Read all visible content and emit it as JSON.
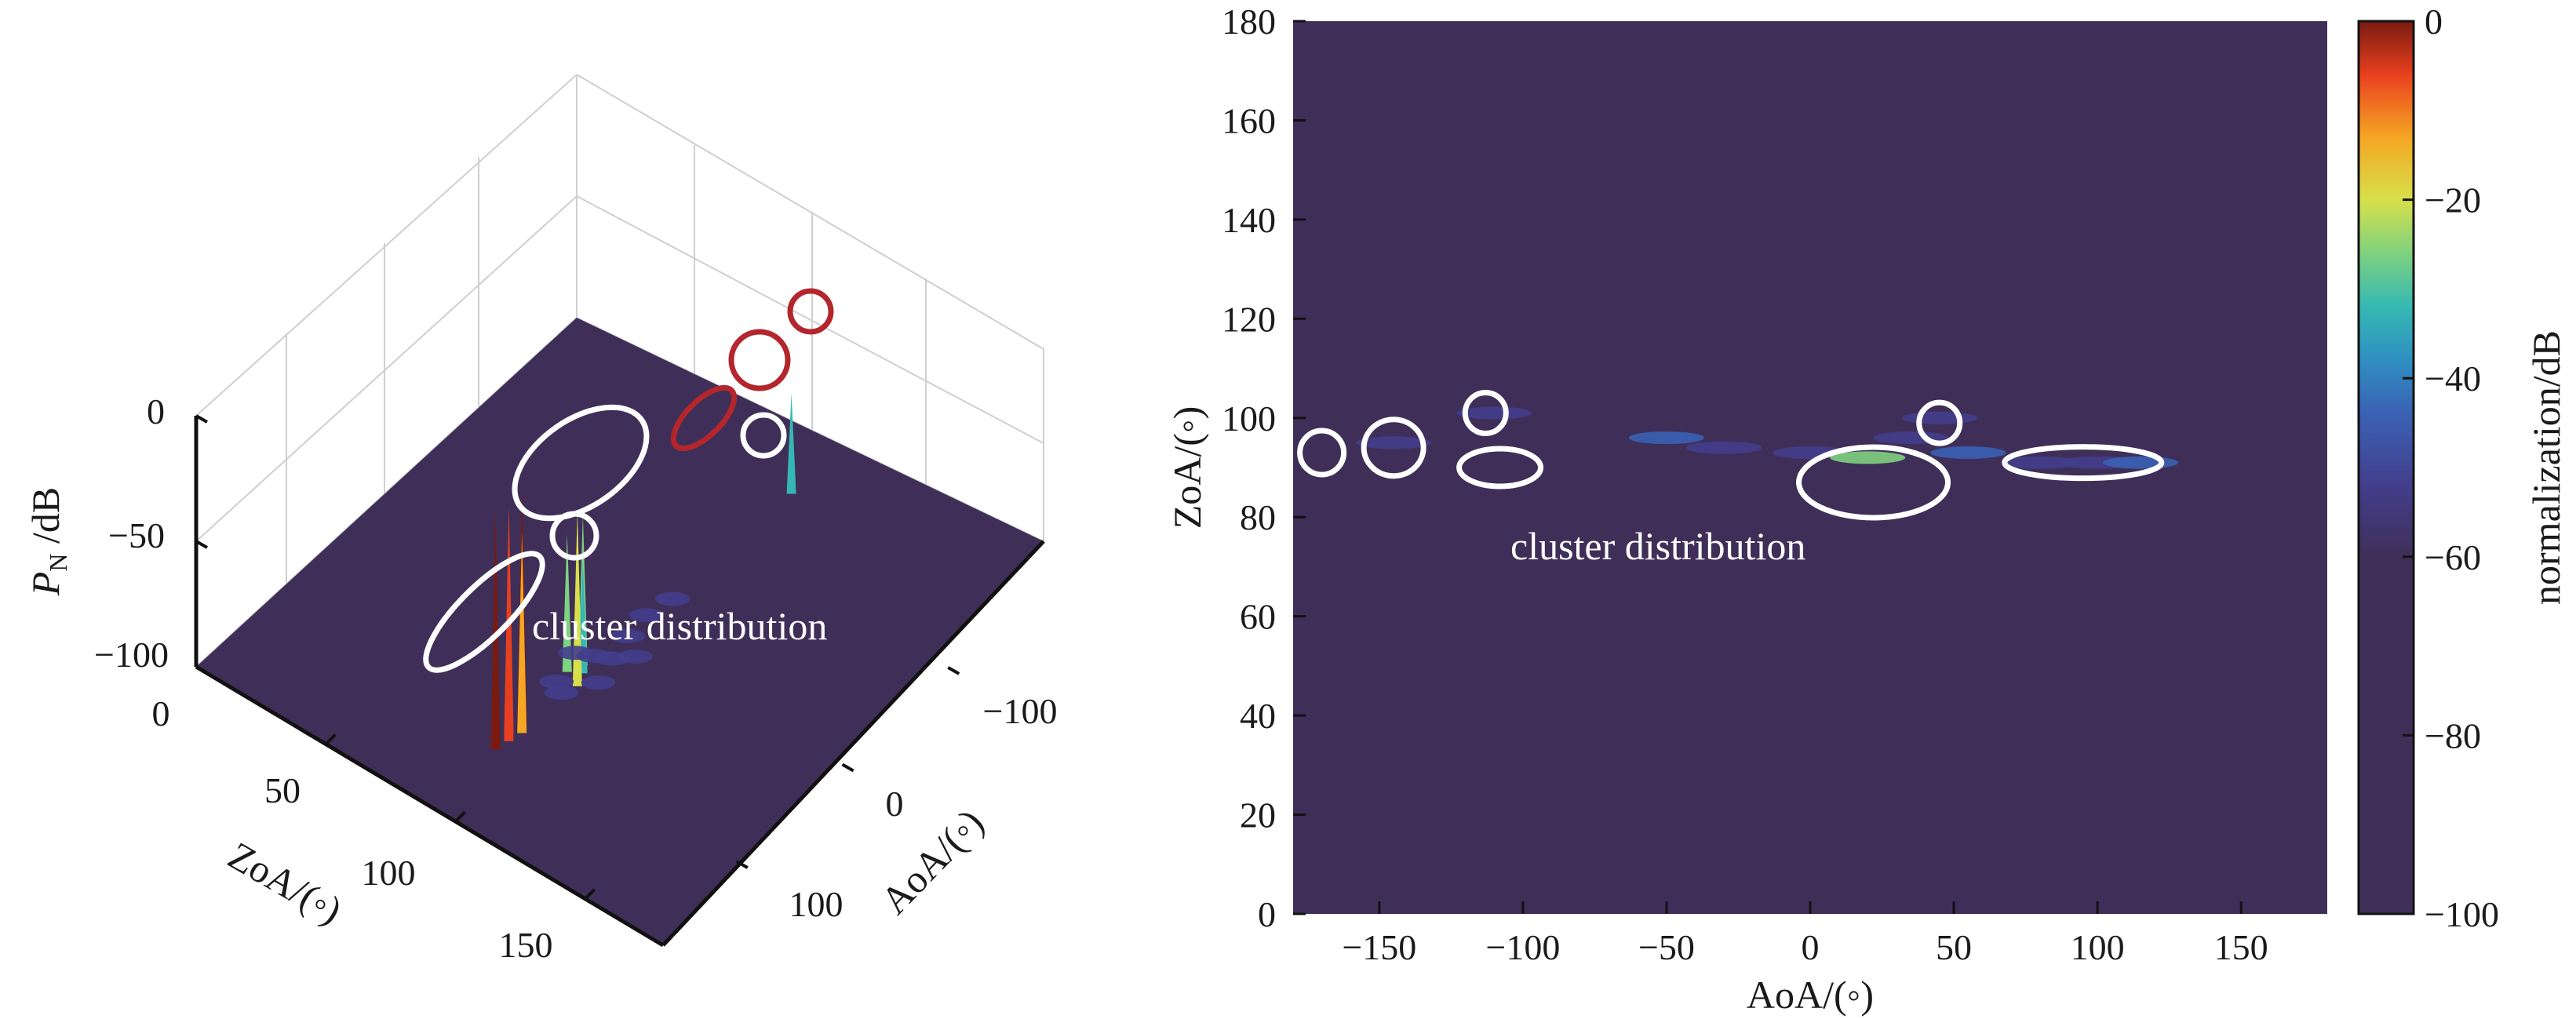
{
  "colors": {
    "background_plane": "#3f2f58",
    "cluster_marker": "#ffffff",
    "strong_cluster_marker": "#b3262c",
    "colormap": [
      "#3f2f58",
      "#433e8c",
      "#3a61b4",
      "#2f8fc2",
      "#35b8b3",
      "#7fd27f",
      "#d7e04a",
      "#f5a623",
      "#e8401f",
      "#7a1a10"
    ]
  },
  "chart_data": [
    {
      "type": "surface3d",
      "zlabel_main": "P",
      "zlabel_sub": "N",
      "zlabel_unit": " /dB",
      "ylabel": "ZoA/(◦)",
      "xlabel": "AoA/(◦)",
      "zticks": [
        "0",
        "−50",
        "−100"
      ],
      "yticks": [
        "0",
        "50",
        "100",
        "150"
      ],
      "xticks": [
        "−100",
        "0",
        "100"
      ],
      "zlim": [
        -100,
        0
      ],
      "ylim": [
        0,
        180
      ],
      "xlim": [
        -180,
        180
      ],
      "grid": true,
      "annotation": "cluster distribution",
      "peaks": [
        {
          "aoa": 35,
          "zoa": 90,
          "pn": -40
        },
        {
          "aoa": 40,
          "zoa": 92,
          "pn": -55
        },
        {
          "aoa": 45,
          "zoa": 88,
          "pn": -45
        },
        {
          "aoa": 50,
          "zoa": 94,
          "pn": -30
        },
        {
          "aoa": -150,
          "zoa": 95,
          "pn": -60
        },
        {
          "aoa": 95,
          "zoa": 91,
          "pn": -5
        },
        {
          "aoa": 100,
          "zoa": 93,
          "pn": -20
        },
        {
          "aoa": 105,
          "zoa": 90,
          "pn": -10
        },
        {
          "aoa": 110,
          "zoa": 92,
          "pn": -8
        },
        {
          "aoa": 120,
          "zoa": 91,
          "pn": -3
        }
      ],
      "clusters_white": [
        {
          "aoa": -170,
          "zoa": 96
        },
        {
          "aoa": -100,
          "zoa": 90
        },
        {
          "aoa": -70,
          "zoa": 95
        },
        {
          "aoa": 90,
          "zoa": 92
        }
      ],
      "clusters_red": [
        {
          "aoa": 50,
          "zoa": 91
        },
        {
          "aoa": 100,
          "zoa": 93
        },
        {
          "aoa": 120,
          "zoa": 91
        }
      ]
    },
    {
      "type": "heatmap",
      "xlabel": "AoA/(◦)",
      "ylabel": "ZoA/(◦)",
      "xlim": [
        -180,
        180
      ],
      "ylim": [
        0,
        180
      ],
      "xticks": [
        "−150",
        "−100",
        "−50",
        "0",
        "50",
        "100",
        "150"
      ],
      "yticks": [
        "0",
        "20",
        "40",
        "60",
        "80",
        "100",
        "120",
        "140",
        "160",
        "180"
      ],
      "colorbar_label": "normalization/dB",
      "colorbar_ticks": [
        "0",
        "−20",
        "−40",
        "−60",
        "−80",
        "−100"
      ],
      "clim": [
        -100,
        0
      ],
      "grid": false,
      "annotation": "cluster distribution",
      "clusters": [
        {
          "aoa": -170,
          "zoa": 93
        },
        {
          "aoa": -145,
          "zoa": 94
        },
        {
          "aoa": -113,
          "zoa": 101
        },
        {
          "aoa": -108,
          "zoa": 90
        },
        {
          "aoa": 22,
          "zoa": 87
        },
        {
          "aoa": 45,
          "zoa": 99
        },
        {
          "aoa": 95,
          "zoa": 91
        }
      ],
      "features": [
        {
          "aoa": -50,
          "zoa": 96
        },
        {
          "aoa": -30,
          "zoa": 94
        },
        {
          "aoa": 0,
          "zoa": 93
        },
        {
          "aoa": 20,
          "zoa": 92
        },
        {
          "aoa": 35,
          "zoa": 96
        },
        {
          "aoa": 45,
          "zoa": 100
        },
        {
          "aoa": 55,
          "zoa": 93
        },
        {
          "aoa": 80,
          "zoa": 91
        },
        {
          "aoa": 100,
          "zoa": 91
        },
        {
          "aoa": 115,
          "zoa": 91
        },
        {
          "aoa": -145,
          "zoa": 95
        },
        {
          "aoa": -110,
          "zoa": 101
        }
      ]
    }
  ]
}
